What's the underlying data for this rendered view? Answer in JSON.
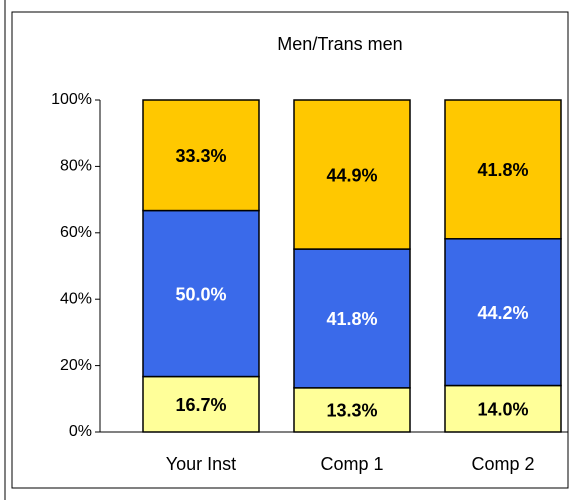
{
  "chart_data": {
    "type": "stacked_bar",
    "title": "Men/Trans men",
    "categories": [
      "Your Inst",
      "Comp 1",
      "Comp 2"
    ],
    "series": [
      {
        "color": "#FFFF99",
        "values": [
          16.7,
          13.3,
          14.0
        ],
        "value_labels": [
          "16.7%",
          "13.3%",
          "14.0%"
        ]
      },
      {
        "color": "#3A6AEA",
        "values": [
          50.0,
          41.8,
          44.2
        ],
        "value_labels": [
          "50.0%",
          "41.8%",
          "44.2%"
        ]
      },
      {
        "color": "#FFC800",
        "values": [
          33.3,
          44.9,
          41.8
        ],
        "value_labels": [
          "33.3%",
          "44.9%",
          "41.8%"
        ]
      }
    ],
    "ylim": [
      0,
      100
    ],
    "yticks": [
      {
        "value": 0,
        "label": "0%"
      },
      {
        "value": 20,
        "label": "20%"
      },
      {
        "value": 40,
        "label": "40%"
      },
      {
        "value": 60,
        "label": "60%"
      },
      {
        "value": 80,
        "label": "80%"
      },
      {
        "value": 100,
        "label": "100%"
      }
    ]
  }
}
